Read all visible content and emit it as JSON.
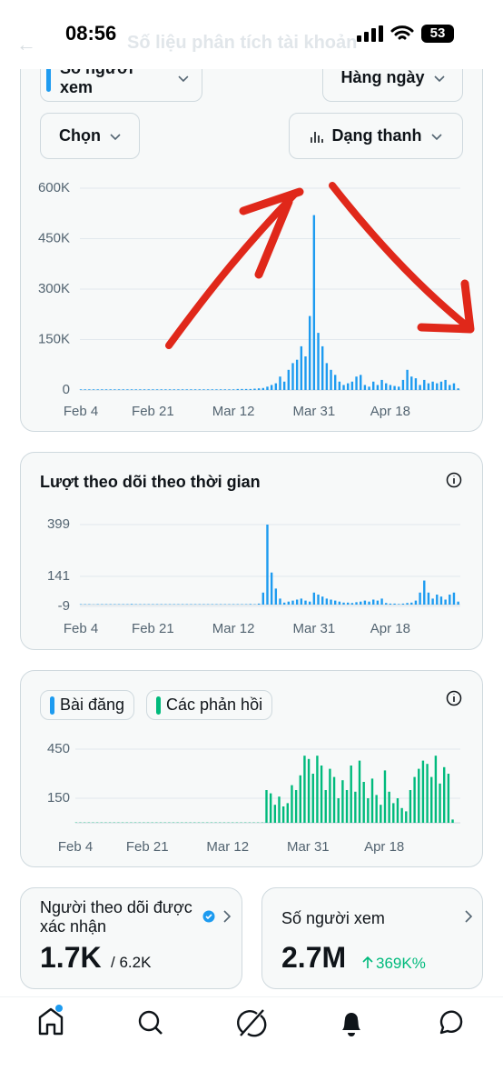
{
  "status": {
    "time": "08:56",
    "battery": "53"
  },
  "header": {
    "title": "Số liệu phân tích tài khoản"
  },
  "controls": {
    "metric": "Số người xem",
    "period": "Hàng ngày",
    "select": "Chọn",
    "view": "Dạng thanh"
  },
  "chart_data": [
    {
      "type": "bar",
      "color": "#1d9bf0",
      "grid": true,
      "categories": [
        "Feb 4",
        null,
        null,
        null,
        null,
        null,
        null,
        null,
        null,
        null,
        null,
        null,
        null,
        null,
        null,
        null,
        null,
        "Feb 21",
        null,
        null,
        null,
        null,
        null,
        null,
        null,
        null,
        null,
        null,
        null,
        null,
        null,
        null,
        null,
        null,
        null,
        null,
        "Mar 12",
        null,
        null,
        null,
        null,
        null,
        null,
        null,
        null,
        null,
        null,
        null,
        null,
        null,
        null,
        null,
        null,
        null,
        null,
        "Mar 31",
        null,
        null,
        null,
        null,
        null,
        null,
        null,
        null,
        null,
        null,
        null,
        null,
        null,
        null,
        null,
        null,
        null,
        "Apr 18",
        null,
        null,
        null,
        null,
        null,
        null,
        null,
        null,
        null,
        null,
        null,
        null,
        null,
        null,
        null,
        null
      ],
      "values": [
        2000,
        2000,
        2000,
        2000,
        2000,
        2000,
        2000,
        2000,
        2000,
        2000,
        2000,
        2000,
        2000,
        2000,
        2000,
        2000,
        2000,
        2000,
        2000,
        2000,
        2000,
        2000,
        2000,
        2000,
        2000,
        2000,
        2000,
        2000,
        2000,
        2000,
        2000,
        2000,
        2000,
        2000,
        2000,
        2000,
        2000,
        3000,
        3000,
        3000,
        3000,
        4000,
        5000,
        6000,
        10000,
        15000,
        20000,
        40000,
        25000,
        60000,
        80000,
        90000,
        130000,
        100000,
        220000,
        520000,
        170000,
        130000,
        80000,
        60000,
        45000,
        25000,
        15000,
        20000,
        25000,
        40000,
        45000,
        15000,
        10000,
        25000,
        15000,
        30000,
        20000,
        15000,
        12000,
        10000,
        30000,
        60000,
        40000,
        35000,
        15000,
        30000,
        20000,
        25000,
        20000,
        25000,
        30000,
        15000,
        20000,
        5000
      ],
      "ylim": [
        0,
        600000
      ],
      "yticks": [
        0,
        {
          "value": 150000,
          "label": "150K"
        },
        {
          "value": 300000,
          "label": "300K"
        },
        {
          "value": 450000,
          "label": "450K"
        },
        {
          "value": 600000,
          "label": "600K"
        }
      ]
    },
    {
      "type": "bar",
      "title": "Lượt theo dõi theo thời gian",
      "color": "#1d9bf0",
      "grid": true,
      "categories": [
        "Feb 4",
        null,
        null,
        null,
        null,
        null,
        null,
        null,
        null,
        null,
        null,
        null,
        null,
        null,
        null,
        null,
        null,
        "Feb 21",
        null,
        null,
        null,
        null,
        null,
        null,
        null,
        null,
        null,
        null,
        null,
        null,
        null,
        null,
        null,
        null,
        null,
        null,
        "Mar 12",
        null,
        null,
        null,
        null,
        null,
        null,
        null,
        null,
        null,
        null,
        null,
        null,
        null,
        null,
        null,
        null,
        null,
        null,
        "Mar 31",
        null,
        null,
        null,
        null,
        null,
        null,
        null,
        null,
        null,
        null,
        null,
        null,
        null,
        null,
        null,
        null,
        null,
        "Apr 18",
        null,
        null,
        null,
        null,
        null,
        null,
        null,
        null,
        null,
        null,
        null,
        null,
        null,
        null,
        null,
        null
      ],
      "values": [
        2,
        2,
        2,
        1,
        2,
        2,
        2,
        2,
        2,
        2,
        2,
        2,
        3,
        2,
        2,
        2,
        2,
        2,
        2,
        2,
        2,
        2,
        2,
        2,
        2,
        2,
        2,
        2,
        2,
        2,
        2,
        2,
        2,
        2,
        2,
        2,
        2,
        2,
        2,
        2,
        3,
        2,
        5,
        60,
        399,
        160,
        80,
        30,
        10,
        15,
        20,
        25,
        30,
        20,
        15,
        60,
        50,
        40,
        30,
        25,
        20,
        15,
        10,
        10,
        8,
        12,
        15,
        20,
        15,
        25,
        20,
        30,
        8,
        5,
        5,
        3,
        5,
        8,
        10,
        20,
        60,
        120,
        60,
        30,
        50,
        40,
        25,
        50,
        60,
        15
      ],
      "ylim": [
        -9,
        399
      ],
      "yticks": [
        -9,
        141,
        399
      ]
    },
    {
      "type": "bar",
      "grid": true,
      "categories": [
        "Feb 4",
        null,
        null,
        null,
        null,
        null,
        null,
        null,
        null,
        null,
        null,
        null,
        null,
        null,
        null,
        null,
        null,
        "Feb 21",
        null,
        null,
        null,
        null,
        null,
        null,
        null,
        null,
        null,
        null,
        null,
        null,
        null,
        null,
        null,
        null,
        null,
        null,
        "Mar 12",
        null,
        null,
        null,
        null,
        null,
        null,
        null,
        null,
        null,
        null,
        null,
        null,
        null,
        null,
        null,
        null,
        null,
        null,
        "Mar 31",
        null,
        null,
        null,
        null,
        null,
        null,
        null,
        null,
        null,
        null,
        null,
        null,
        null,
        null,
        null,
        null,
        null,
        "Apr 18",
        null,
        null,
        null,
        null,
        null,
        null,
        null,
        null,
        null,
        null,
        null,
        null,
        null,
        null,
        null,
        null
      ],
      "series": [
        {
          "name": "Bài đăng",
          "color": "#1d9bf0",
          "values": [
            0,
            0,
            0,
            0,
            0,
            0,
            0,
            0,
            0,
            0,
            0,
            0,
            0,
            0,
            0,
            0,
            0,
            0,
            0,
            0,
            0,
            0,
            0,
            0,
            0,
            0,
            0,
            0,
            0,
            0,
            0,
            0,
            0,
            0,
            0,
            0,
            0,
            0,
            0,
            0,
            0,
            0,
            0,
            0,
            0,
            1,
            1,
            0,
            0,
            1,
            0,
            1,
            0,
            0,
            1,
            0,
            1,
            0,
            0,
            1,
            0,
            0,
            1,
            0,
            0,
            0,
            1,
            0,
            0,
            0,
            0,
            1,
            0,
            0,
            0,
            0,
            0,
            0,
            1,
            0,
            0,
            1,
            0,
            0,
            1,
            0,
            0,
            1,
            0,
            0
          ]
        },
        {
          "name": "Các phản hồi",
          "color": "#00ba7c",
          "values": [
            2,
            2,
            2,
            2,
            2,
            2,
            2,
            2,
            2,
            2,
            2,
            2,
            2,
            2,
            2,
            2,
            2,
            2,
            2,
            2,
            2,
            2,
            2,
            2,
            2,
            2,
            2,
            2,
            2,
            2,
            2,
            2,
            2,
            2,
            2,
            2,
            2,
            2,
            2,
            2,
            2,
            2,
            2,
            2,
            2,
            200,
            180,
            110,
            160,
            100,
            120,
            230,
            200,
            290,
            410,
            390,
            300,
            410,
            350,
            200,
            330,
            280,
            150,
            260,
            200,
            350,
            190,
            380,
            250,
            150,
            270,
            170,
            110,
            320,
            190,
            120,
            150,
            90,
            70,
            200,
            280,
            330,
            380,
            360,
            280,
            410,
            240,
            340,
            300,
            20
          ]
        }
      ],
      "ylim": [
        0,
        450
      ],
      "yticks": [
        150,
        450
      ]
    }
  ],
  "cards": [
    {
      "title": "Người theo dõi được xác nhận",
      "value": "1.7K",
      "total": "/ 6.2K"
    },
    {
      "title": "Số người xem",
      "value": "2.7M",
      "change": "369K%"
    }
  ]
}
